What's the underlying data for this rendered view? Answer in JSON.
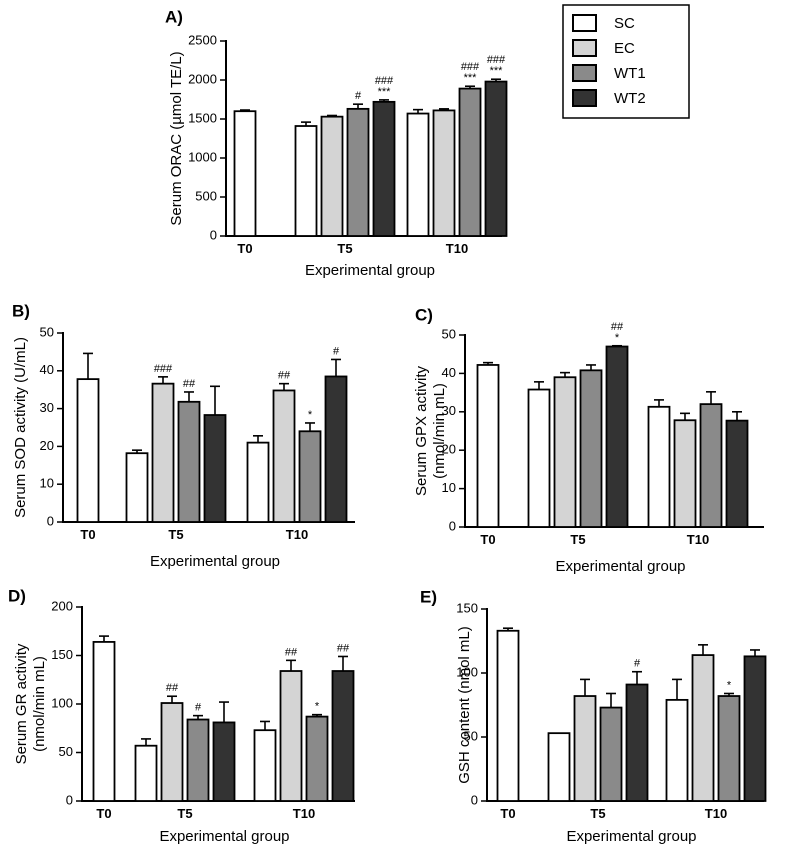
{
  "legend": {
    "entries": [
      {
        "name": "SC",
        "color": "#ffffff"
      },
      {
        "name": "EC",
        "color": "#d4d4d4"
      },
      {
        "name": "WT1",
        "color": "#8a8a8a"
      },
      {
        "name": "WT2",
        "color": "#333333"
      }
    ]
  },
  "chart_data": [
    {
      "id": "A",
      "type": "bar",
      "title": "A)",
      "xlabel": "Experimental group",
      "ylabel": "Serum ORAC (µmol TE/L)",
      "ylim": [
        0,
        2500
      ],
      "yticks": [
        0,
        500,
        1000,
        1500,
        2000,
        2500
      ],
      "groups": [
        {
          "label": "T0",
          "bars": [
            {
              "series": "SC",
              "value": 1600,
              "err": 15,
              "annot": []
            }
          ]
        },
        {
          "label": "T5",
          "bars": [
            {
              "series": "SC",
              "value": 1410,
              "err": 50,
              "annot": []
            },
            {
              "series": "EC",
              "value": 1530,
              "err": 15,
              "annot": []
            },
            {
              "series": "WT1",
              "value": 1630,
              "err": 60,
              "annot": [
                "#"
              ]
            },
            {
              "series": "WT2",
              "value": 1720,
              "err": 25,
              "annot": [
                "###",
                "***"
              ]
            }
          ]
        },
        {
          "label": "T10",
          "bars": [
            {
              "series": "SC",
              "value": 1570,
              "err": 50,
              "annot": []
            },
            {
              "series": "EC",
              "value": 1610,
              "err": 20,
              "annot": []
            },
            {
              "series": "WT1",
              "value": 1890,
              "err": 30,
              "annot": [
                "###",
                "***"
              ]
            },
            {
              "series": "WT2",
              "value": 1980,
              "err": 30,
              "annot": [
                "###",
                "***"
              ]
            }
          ]
        }
      ]
    },
    {
      "id": "B",
      "type": "bar",
      "title": "B)",
      "xlabel": "Experimental group",
      "ylabel": "Serum SOD activity (U/mL)",
      "ylim": [
        0,
        50
      ],
      "yticks": [
        0,
        10,
        20,
        30,
        40,
        50
      ],
      "groups": [
        {
          "label": "T0",
          "bars": [
            {
              "series": "SC",
              "value": 37.8,
              "err": 6.8,
              "annot": []
            }
          ]
        },
        {
          "label": "T5",
          "bars": [
            {
              "series": "SC",
              "value": 18.2,
              "err": 0.8,
              "annot": []
            },
            {
              "series": "EC",
              "value": 36.6,
              "err": 1.8,
              "annot": [
                "###"
              ]
            },
            {
              "series": "WT1",
              "value": 31.8,
              "err": 2.6,
              "annot": [
                "##"
              ]
            },
            {
              "series": "WT2",
              "value": 28.3,
              "err": 7.6,
              "annot": []
            }
          ]
        },
        {
          "label": "T10",
          "bars": [
            {
              "series": "SC",
              "value": 21.0,
              "err": 1.8,
              "annot": []
            },
            {
              "series": "EC",
              "value": 34.8,
              "err": 1.8,
              "annot": [
                "##"
              ]
            },
            {
              "series": "WT1",
              "value": 24.0,
              "err": 2.2,
              "annot": [
                "*"
              ]
            },
            {
              "series": "WT2",
              "value": 38.5,
              "err": 4.5,
              "annot": [
                "#"
              ]
            }
          ]
        }
      ]
    },
    {
      "id": "C",
      "type": "bar",
      "title": "C)",
      "xlabel": "Experimental group",
      "ylabel": "Serum GPX activity (nmol/min mL)",
      "ylabel_lines": [
        "Serum GPX activity",
        "(nmol/min mL)"
      ],
      "ylim": [
        0,
        50
      ],
      "yticks": [
        0,
        10,
        20,
        30,
        40,
        50
      ],
      "groups": [
        {
          "label": "T0",
          "bars": [
            {
              "series": "SC",
              "value": 42.2,
              "err": 0.6,
              "annot": []
            }
          ]
        },
        {
          "label": "T5",
          "bars": [
            {
              "series": "SC",
              "value": 35.8,
              "err": 2.0,
              "annot": []
            },
            {
              "series": "EC",
              "value": 39.0,
              "err": 1.2,
              "annot": []
            },
            {
              "series": "WT1",
              "value": 40.8,
              "err": 1.4,
              "annot": []
            },
            {
              "series": "WT2",
              "value": 47.0,
              "err": 0.2,
              "annot": [
                "##",
                "*"
              ]
            }
          ]
        },
        {
          "label": "T10",
          "bars": [
            {
              "series": "SC",
              "value": 31.3,
              "err": 1.8,
              "annot": []
            },
            {
              "series": "EC",
              "value": 27.8,
              "err": 1.8,
              "annot": []
            },
            {
              "series": "WT1",
              "value": 32.0,
              "err": 3.2,
              "annot": []
            },
            {
              "series": "WT2",
              "value": 27.7,
              "err": 2.3,
              "annot": []
            }
          ]
        }
      ]
    },
    {
      "id": "D",
      "type": "bar",
      "title": "D)",
      "xlabel": "Experimental group",
      "ylabel": "Serum GR activity (nmol/min mL)",
      "ylabel_lines": [
        "Serum GR activity",
        "(nmol/min mL)"
      ],
      "ylim": [
        0,
        200
      ],
      "yticks": [
        0,
        50,
        100,
        150,
        200
      ],
      "groups": [
        {
          "label": "T0",
          "bars": [
            {
              "series": "SC",
              "value": 164,
              "err": 6,
              "annot": []
            }
          ]
        },
        {
          "label": "T5",
          "bars": [
            {
              "series": "SC",
              "value": 57,
              "err": 7,
              "annot": []
            },
            {
              "series": "EC",
              "value": 101,
              "err": 7,
              "annot": [
                "##"
              ]
            },
            {
              "series": "WT1",
              "value": 84,
              "err": 4,
              "annot": [
                "#"
              ]
            },
            {
              "series": "WT2",
              "value": 81,
              "err": 21,
              "annot": []
            }
          ]
        },
        {
          "label": "T10",
          "bars": [
            {
              "series": "SC",
              "value": 73,
              "err": 9,
              "annot": []
            },
            {
              "series": "EC",
              "value": 134,
              "err": 11,
              "annot": [
                "##"
              ]
            },
            {
              "series": "WT1",
              "value": 87,
              "err": 2,
              "annot": [
                "*"
              ]
            },
            {
              "series": "WT2",
              "value": 134,
              "err": 15,
              "annot": [
                "##"
              ]
            }
          ]
        }
      ]
    },
    {
      "id": "E",
      "type": "bar",
      "title": "E)",
      "xlabel": "Experimental group",
      "ylabel": "GSH content (nmol mL)",
      "ylim": [
        0,
        150
      ],
      "yticks": [
        0,
        50,
        100,
        150
      ],
      "groups": [
        {
          "label": "T0",
          "bars": [
            {
              "series": "SC",
              "value": 133,
              "err": 2,
              "annot": []
            }
          ]
        },
        {
          "label": "T5",
          "bars": [
            {
              "series": "SC",
              "value": 53,
              "err": 0,
              "annot": []
            },
            {
              "series": "EC",
              "value": 82,
              "err": 13,
              "annot": []
            },
            {
              "series": "WT1",
              "value": 73,
              "err": 11,
              "annot": []
            },
            {
              "series": "WT2",
              "value": 91,
              "err": 10,
              "annot": [
                "#"
              ]
            }
          ]
        },
        {
          "label": "T10",
          "bars": [
            {
              "series": "SC",
              "value": 79,
              "err": 16,
              "annot": []
            },
            {
              "series": "EC",
              "value": 114,
              "err": 8,
              "annot": []
            },
            {
              "series": "WT1",
              "value": 82,
              "err": 2,
              "annot": [
                "*"
              ]
            },
            {
              "series": "WT2",
              "value": 113,
              "err": 5,
              "annot": []
            }
          ]
        }
      ]
    }
  ]
}
